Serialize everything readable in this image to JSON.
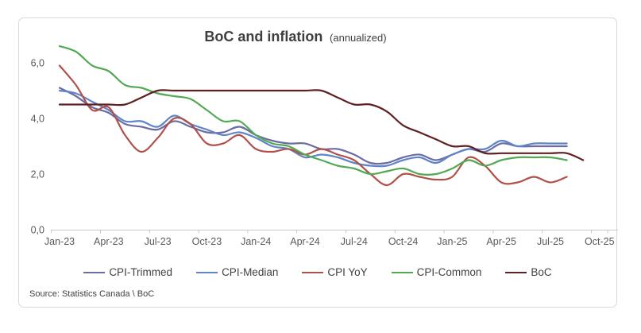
{
  "header": {
    "title": "BoC and inflation",
    "subtitle": "(annualized)"
  },
  "source": "Source: Statistics Canada \\ BoC",
  "chart_data": {
    "type": "line",
    "title": "BoC and inflation (annualized)",
    "xlabel": "",
    "ylabel": "",
    "ylim": [
      0,
      7
    ],
    "grid": false,
    "smoothed_lines": true,
    "legend_position": "bottom",
    "x_months": [
      "Jan-23",
      "Feb-23",
      "Mar-23",
      "Apr-23",
      "May-23",
      "Jun-23",
      "Jul-23",
      "Aug-23",
      "Sep-23",
      "Oct-23",
      "Nov-23",
      "Dec-23",
      "Jan-24",
      "Feb-24",
      "Mar-24",
      "Apr-24",
      "May-24",
      "Jun-24",
      "Jul-24",
      "Aug-24",
      "Sep-24",
      "Oct-24",
      "Nov-24",
      "Dec-24",
      "Jan-25",
      "Feb-25",
      "Mar-25",
      "Apr-25",
      "May-25",
      "Jun-25",
      "Jul-25",
      "Aug-25",
      "Sep-25"
    ],
    "x_tick_labels": [
      "Jan-23",
      "Apr-23",
      "Jul-23",
      "Oct-23",
      "Jan-24",
      "Apr-24",
      "Jul-24",
      "Oct-24",
      "Jan-25",
      "Apr-25",
      "Jul-25",
      "Oct-25"
    ],
    "y_ticks": [
      {
        "label": "0,0",
        "value": 0
      },
      {
        "label": "2,0",
        "value": 2
      },
      {
        "label": "4,0",
        "value": 4
      },
      {
        "label": "6,0",
        "value": 6
      }
    ],
    "axis_color": "#c9c9c9",
    "tick_text_color": "#595959",
    "series": [
      {
        "name": "CPI-Trimmed",
        "color": "#6c6ca4",
        "values": [
          5.1,
          4.8,
          4.4,
          4.2,
          3.8,
          3.7,
          3.6,
          3.9,
          3.7,
          3.5,
          3.5,
          3.7,
          3.4,
          3.2,
          3.1,
          3.1,
          2.9,
          2.9,
          2.7,
          2.4,
          2.4,
          2.6,
          2.7,
          2.5,
          2.7,
          2.9,
          2.8,
          3.1,
          3.0,
          3.0,
          3.0,
          3.0
        ]
      },
      {
        "name": "CPI-Median",
        "color": "#5f85c8",
        "values": [
          5.0,
          4.9,
          4.6,
          4.3,
          3.9,
          3.9,
          3.7,
          4.1,
          3.8,
          3.6,
          3.4,
          3.5,
          3.3,
          3.0,
          2.9,
          2.6,
          2.7,
          2.6,
          2.4,
          2.3,
          2.3,
          2.5,
          2.6,
          2.4,
          2.7,
          2.9,
          2.9,
          3.2,
          3.0,
          3.1,
          3.1,
          3.1
        ]
      },
      {
        "name": "CPI YoY",
        "color": "#b05149",
        "values": [
          5.9,
          5.2,
          4.3,
          4.4,
          3.4,
          2.8,
          3.3,
          4.0,
          3.8,
          3.1,
          3.1,
          3.4,
          2.9,
          2.8,
          2.9,
          2.7,
          2.9,
          2.7,
          2.5,
          2.0,
          1.6,
          2.0,
          1.9,
          1.8,
          1.9,
          2.6,
          2.3,
          1.7,
          1.7,
          1.9,
          1.7,
          1.9
        ]
      },
      {
        "name": "CPI-Common",
        "color": "#53a953",
        "values": [
          6.6,
          6.4,
          5.9,
          5.7,
          5.2,
          5.1,
          4.9,
          4.8,
          4.7,
          4.3,
          3.9,
          3.9,
          3.4,
          3.1,
          3.0,
          2.7,
          2.5,
          2.3,
          2.2,
          2.0,
          2.1,
          2.2,
          2.0,
          2.0,
          2.2,
          2.5,
          2.3,
          2.5,
          2.6,
          2.6,
          2.6,
          2.5
        ]
      },
      {
        "name": "BoC",
        "color": "#5e2021",
        "values": [
          4.5,
          4.5,
          4.5,
          4.5,
          4.5,
          4.75,
          5.0,
          5.0,
          5.0,
          5.0,
          5.0,
          5.0,
          5.0,
          5.0,
          5.0,
          5.0,
          5.0,
          4.75,
          4.5,
          4.5,
          4.25,
          3.75,
          3.5,
          3.25,
          3.0,
          3.0,
          2.75,
          2.75,
          2.75,
          2.75,
          2.75,
          2.75,
          2.5
        ]
      }
    ]
  }
}
